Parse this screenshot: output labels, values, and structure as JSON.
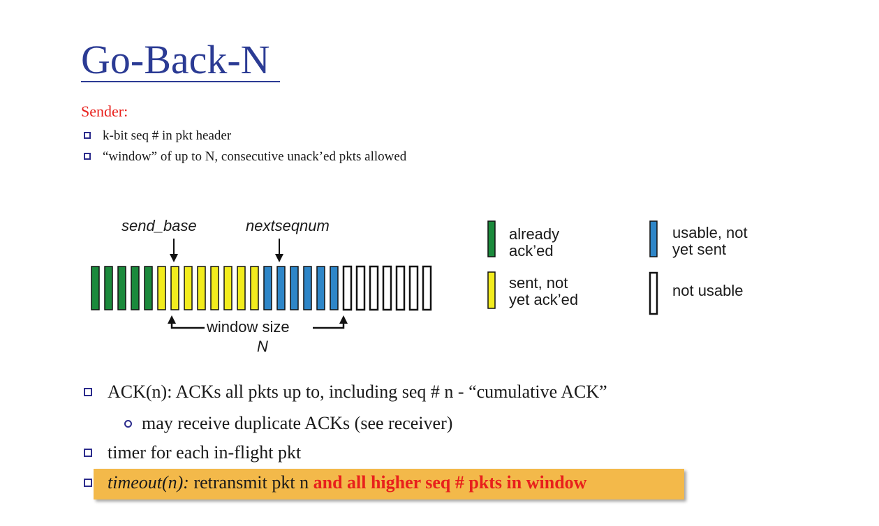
{
  "title": "Go-Back-N",
  "sender": {
    "label": "Sender:",
    "bullets": [
      "k-bit seq # in pkt header",
      "“window” of up to N, consecutive unack’ed pkts allowed"
    ]
  },
  "diagram": {
    "send_base_label": "send_base",
    "nextseqnum_label": "nextseqnum",
    "window_label": "window size",
    "n_label": "N",
    "packets": [
      "acked",
      "acked",
      "acked",
      "acked",
      "acked",
      "sent",
      "sent",
      "sent",
      "sent",
      "sent",
      "sent",
      "sent",
      "sent",
      "usable",
      "usable",
      "usable",
      "usable",
      "usable",
      "usable",
      "unusable",
      "unusable",
      "unusable",
      "unusable",
      "unusable",
      "unusable",
      "unusable"
    ],
    "colors": {
      "acked": "#1b8a3c",
      "sent": "#f2ec1e",
      "usable": "#2e86c8",
      "unusable": "#ffffff",
      "outline": "#111111"
    }
  },
  "legend": {
    "acked": [
      "already",
      "ack’ed"
    ],
    "usable": [
      "usable, not",
      "yet sent"
    ],
    "sent": [
      "sent, not",
      "yet ack’ed"
    ],
    "unusable": [
      "not usable"
    ]
  },
  "bullets": {
    "ack": "ACK(n): ACKs all pkts up to, including seq # n - “cumulative ACK”",
    "dup": "may receive duplicate ACKs (see receiver)",
    "timer": "timer for each in-flight pkt",
    "timeout_italic": "timeout(n):",
    "timeout_plain": " retransmit pkt n ",
    "timeout_bold": "and all higher seq # pkts in window"
  },
  "highlight_color": "#f3b94a"
}
